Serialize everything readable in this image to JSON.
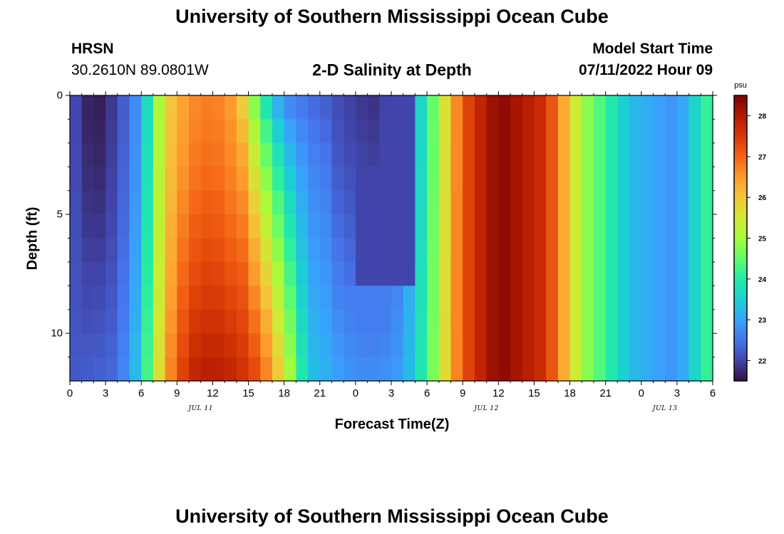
{
  "page": {
    "title": "University of Southern Mississippi Ocean Cube",
    "station": "HRSN",
    "coordinates": "30.2610N  89.0801W",
    "subtitle": "2-D Salinity at Depth",
    "model_start_label": "Model Start Time",
    "model_start_value": "07/11/2022 Hour 09",
    "footer_title": "University of Southern Mississippi Ocean Cube"
  },
  "chart_data": {
    "type": "heatmap",
    "title": "2-D Salinity at Depth",
    "xlabel": "Forecast Time(Z)",
    "ylabel": "Depth (ft)",
    "x_range_hours": [
      0,
      54
    ],
    "x_tick_labels": [
      "0",
      "3",
      "6",
      "9",
      "12",
      "15",
      "18",
      "21",
      "0",
      "3",
      "6",
      "9",
      "12",
      "15",
      "18",
      "21",
      "0",
      "3",
      "6"
    ],
    "x_date_labels": [
      {
        "label": "JUL 11",
        "at_hour": 11
      },
      {
        "label": "JUL 12",
        "at_hour": 35
      },
      {
        "label": "JUL 13",
        "at_hour": 50
      }
    ],
    "y_range_ft": [
      0,
      12
    ],
    "y_tick_labels": [
      "0",
      "5",
      "10"
    ],
    "y_inverted": true,
    "colorbar": {
      "unit": "psu",
      "range": [
        21.5,
        28.5
      ],
      "tick_labels": [
        "22",
        "23",
        "24",
        "25",
        "26",
        "27",
        "28"
      ],
      "stops": [
        "#30123b",
        "#4145ab",
        "#4675ed",
        "#39a2fc",
        "#1bcfd4",
        "#24eca6",
        "#61fc6c",
        "#a4fc3b",
        "#d1e834",
        "#f3c63a",
        "#fe9b2d",
        "#f36315",
        "#d93806",
        "#b11901",
        "#7a0403"
      ]
    },
    "salinity_profile_note_columns": [
      {
        "hour": 0,
        "surface": 22.2,
        "bottom": 22.2
      },
      {
        "hour": 2,
        "surface": 21.5,
        "bottom": 22.3
      },
      {
        "hour": 4,
        "surface": 22.0,
        "bottom": 22.4
      },
      {
        "hour": 6,
        "surface": 23.0,
        "bottom": 23.6
      },
      {
        "hour": 8,
        "surface": 25.8,
        "bottom": 26.4
      },
      {
        "hour": 10,
        "surface": 26.6,
        "bottom": 27.8
      },
      {
        "hour": 12,
        "surface": 26.8,
        "bottom": 28.0
      },
      {
        "hour": 14,
        "surface": 26.4,
        "bottom": 27.8
      },
      {
        "hour": 16,
        "surface": 24.0,
        "bottom": 27.2
      },
      {
        "hour": 18,
        "surface": 22.6,
        "bottom": 25.6
      },
      {
        "hour": 20,
        "surface": 22.4,
        "bottom": 23.4
      },
      {
        "hour": 24,
        "surface": 21.9,
        "bottom": 22.8
      },
      {
        "hour": 26,
        "surface": 21.8,
        "bottom": 22.8
      },
      {
        "hour": 28,
        "surface": 22.5,
        "bottom": 23.0
      },
      {
        "hour": 30,
        "surface": 24.0,
        "bottom": 24.2
      },
      {
        "hour": 33,
        "surface": 27.2,
        "bottom": 27.2
      },
      {
        "hour": 36,
        "surface": 28.4,
        "bottom": 28.4
      },
      {
        "hour": 40,
        "surface": 27.6,
        "bottom": 27.6
      },
      {
        "hour": 43,
        "surface": 25.0,
        "bottom": 25.0
      },
      {
        "hour": 47,
        "surface": 23.3,
        "bottom": 23.3
      },
      {
        "hour": 51,
        "surface": 22.8,
        "bottom": 22.8
      },
      {
        "hour": 54,
        "surface": 24.4,
        "bottom": 24.4
      }
    ]
  }
}
